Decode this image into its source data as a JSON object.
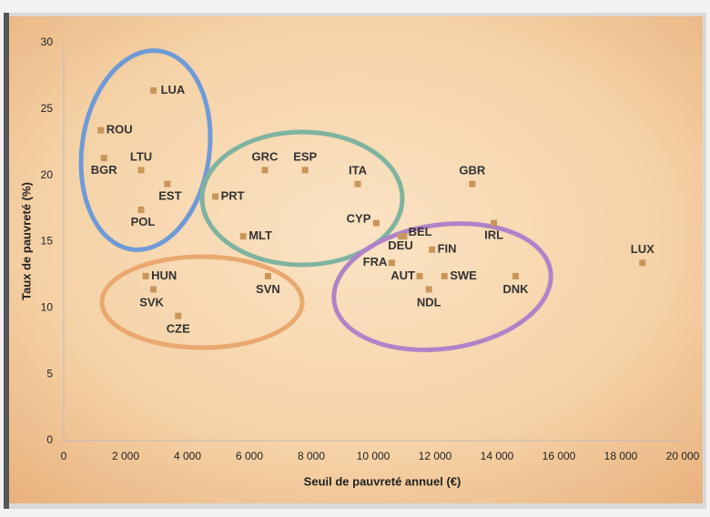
{
  "chart_data": {
    "type": "scatter",
    "xlabel": "Seuil de pauvreté annuel (€)",
    "ylabel": "Taux de pauvreté (%)",
    "labels": [
      "LUA",
      "ROU",
      "BGR",
      "LTU",
      "EST",
      "POL",
      "GRC",
      "ESP",
      "ITA",
      "PRT",
      "MLT",
      "CYP",
      "GBR",
      "IRL",
      "BEL",
      "DEU",
      "FIN",
      "FRA",
      "LUX",
      "HUN",
      "SVN",
      "AUT",
      "SWE",
      "DNK",
      "SVK",
      "NDL",
      "CZE"
    ],
    "x": [
      2900,
      1200,
      1300,
      2500,
      3350,
      2500,
      6500,
      7800,
      9500,
      4900,
      5800,
      10100,
      13200,
      13900,
      10900,
      11000,
      11900,
      10600,
      18700,
      2650,
      6600,
      11500,
      12300,
      14600,
      2900,
      11800,
      3700
    ],
    "values": [
      26.4,
      23.4,
      21.3,
      20.4,
      19.35,
      17.4,
      20.4,
      20.4,
      19.35,
      18.4,
      15.4,
      16.4,
      19.35,
      16.4,
      15.4,
      15.4,
      14.4,
      13.4,
      13.4,
      12.4,
      12.4,
      12.4,
      12.4,
      12.4,
      11.4,
      11.4,
      9.4
    ],
    "color": "#c8965a",
    "xlim": [
      0,
      20000
    ],
    "xticks": [
      0,
      {
        "value": 2000,
        "label": "2 000"
      },
      {
        "value": 4000,
        "label": "4 000"
      },
      {
        "value": 6000,
        "label": "6 000"
      },
      {
        "value": 8000,
        "label": "8 000"
      },
      {
        "value": 10000,
        "label": "10 000"
      },
      {
        "value": 12000,
        "label": "12 000"
      },
      {
        "value": 14000,
        "label": "14 000"
      },
      {
        "value": 16000,
        "label": "16 000"
      },
      {
        "value": 18000,
        "label": "18 000"
      },
      {
        "value": 20000,
        "label": "20 000"
      }
    ],
    "ylim": [
      0,
      30
    ],
    "yticks": [
      0,
      5,
      10,
      15,
      20,
      25,
      30
    ]
  }
}
